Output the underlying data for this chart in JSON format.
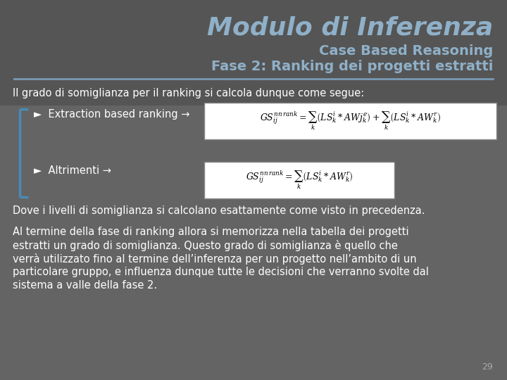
{
  "bg_color": "#646464",
  "title_bg_color": "#555555",
  "title_main": "Modulo di Inferenza",
  "title_sub1": "Case Based Reasoning",
  "title_sub2": "Fase 2: Ranking dei progetti estratti",
  "title_main_color": "#8fb0c8",
  "title_sub_color": "#8fb0c8",
  "separator_color": "#7a9ab5",
  "text_color": "#ffffff",
  "bracket_color": "#4a8ab5",
  "line1": "Il grado di somiglianza per il ranking si calcola dunque come segue:",
  "bullet1_label": "►  Extraction based ranking →",
  "bullet2_label": "►  Altrimenti →",
  "line_dove": "Dove i livelli di somiglianza si calcolano esattamente come visto in precedenza.",
  "paragraph_lines": [
    "Al termine della fase di ranking allora si memorizza nella tabella dei progetti",
    "estratti un grado di somiglianza. Questo grado di somiglianza è quello che",
    "verrà utilizzato fino al termine dell’inferenza per un progetto nell’ambito di un",
    "particolare gruppo, e influenza dunque tutte le decisioni che verranno svolte dal",
    "sistema a valle della fase 2."
  ],
  "page_number": "29",
  "formula1": "$GS_{ij}^{nn\\,rank} = \\sum_k \\left(LS_k^i * AWj_k^e\\right) + \\sum_k \\left(LS_k^i * AW_k^r\\right)$",
  "formula2": "$GS_{ij}^{nn\\,rank} = \\sum_k \\left(LS_k^i * AW_k^r\\right)$",
  "title_main_fontsize": 26,
  "title_sub_fontsize": 14,
  "body_fontsize": 10.5
}
